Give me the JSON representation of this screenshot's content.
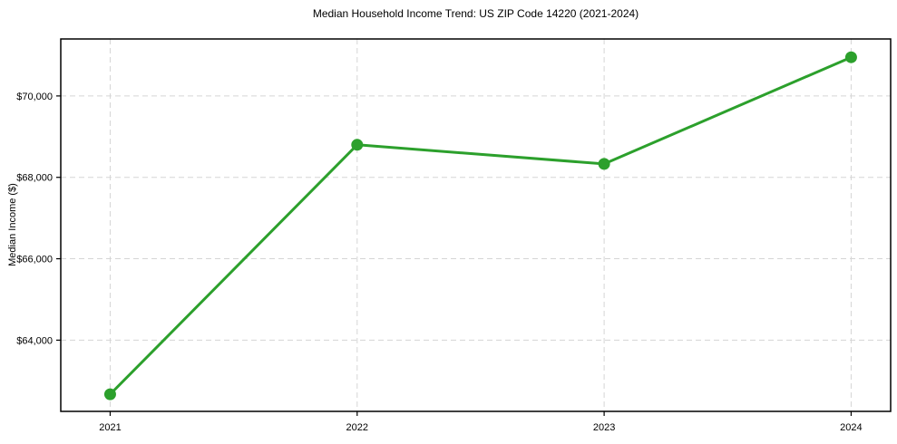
{
  "chart_data": {
    "type": "line",
    "title": "Median Household Income Trend: US ZIP Code 14220 (2021-2024)",
    "xlabel": "",
    "ylabel": "Median Income ($)",
    "x": [
      2021,
      2022,
      2023,
      2024
    ],
    "series": [
      {
        "name": "Median household income",
        "values": [
          62670,
          68800,
          68330,
          70950
        ]
      }
    ],
    "xticks": [
      2021,
      2022,
      2023,
      2024
    ],
    "xtick_labels": [
      "2021",
      "2022",
      "2023",
      "2024"
    ],
    "yticks": [
      64000,
      66000,
      68000,
      70000
    ],
    "ytick_labels": [
      "$64,000",
      "$66,000",
      "$68,000",
      "$70,000"
    ],
    "xlim": [
      2020.8,
      2024.16
    ],
    "ylim": [
      62250,
      71400
    ],
    "grid": true,
    "grid_style": "dashed",
    "legend": false,
    "colors": {
      "line": "#2ca02c",
      "marker": "#2ca02c",
      "grid": "#d5d5d5",
      "spine": "#000000",
      "background": "#ffffff"
    }
  }
}
